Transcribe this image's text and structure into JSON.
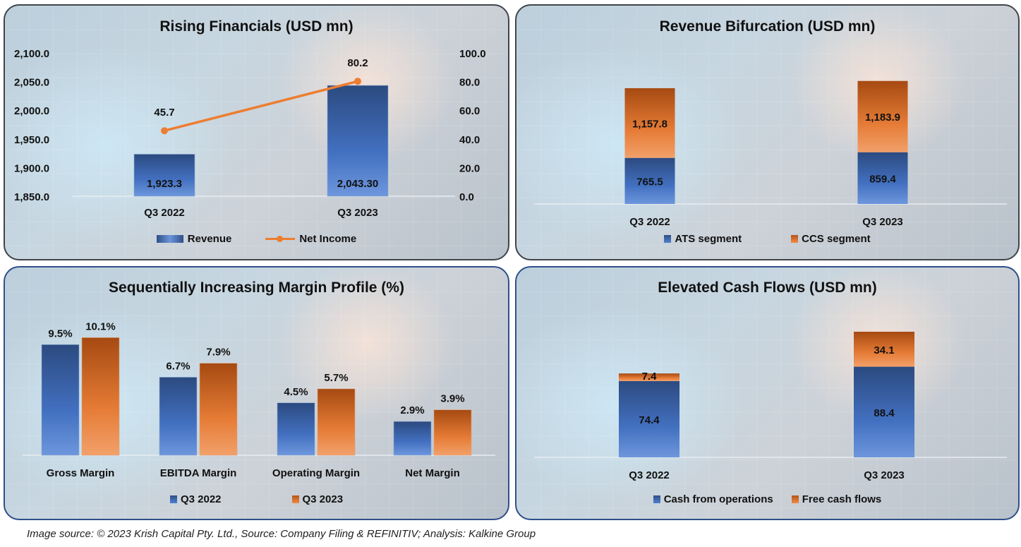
{
  "colors": {
    "blue": "#4472c4",
    "blue_dark": "#2f4f86",
    "orange": "#ed7d31",
    "orange_dark": "#b5531a",
    "line": "#ed7d31"
  },
  "chart_data": [
    {
      "type": "bar",
      "combo": "bar+line",
      "title": "Rising Financials (USD mn)",
      "categories": [
        "Q3 2022",
        "Q3 2023"
      ],
      "series": [
        {
          "name": "Revenue",
          "type": "bar",
          "axis": "left",
          "values": [
            1923.3,
            2043.3
          ],
          "labels": [
            "1,923.3",
            "2,043.30"
          ]
        },
        {
          "name": "Net Income",
          "type": "line",
          "axis": "right",
          "values": [
            45.7,
            80.2
          ],
          "labels": [
            "45.7",
            "80.2"
          ]
        }
      ],
      "y_left": {
        "min": 1850,
        "max": 2100,
        "ticks": [
          "2,100.0",
          "2,050.0",
          "2,000.0",
          "1,950.0",
          "1,900.0",
          "1,850.0"
        ]
      },
      "y_right": {
        "min": 0,
        "max": 100,
        "ticks": [
          "100.0",
          "80.0",
          "60.0",
          "40.0",
          "20.0",
          "0.0"
        ]
      },
      "legend": [
        "Revenue",
        "Net Income"
      ],
      "legend_position": "bottom",
      "grid": false
    },
    {
      "type": "bar",
      "stacked": true,
      "title": "Revenue Bifurcation (USD mn)",
      "categories": [
        "Q3 2022",
        "Q3 2023"
      ],
      "series": [
        {
          "name": "ATS segment",
          "values": [
            765.5,
            859.4
          ],
          "labels": [
            "765.5",
            "859.4"
          ]
        },
        {
          "name": "CCS segment",
          "values": [
            1157.8,
            1183.9
          ],
          "labels": [
            "1,157.8",
            "1,183.9"
          ]
        }
      ],
      "legend": [
        "ATS segment",
        "CCS segment"
      ],
      "legend_position": "bottom",
      "grid": false
    },
    {
      "type": "bar",
      "title": "Sequentially Increasing Margin Profile (%)",
      "categories": [
        "Gross Margin",
        "EBITDA Margin",
        "Operating Margin",
        "Net Margin"
      ],
      "series": [
        {
          "name": "Q3 2022",
          "values": [
            9.5,
            6.7,
            4.5,
            2.9
          ],
          "labels": [
            "9.5%",
            "6.7%",
            "4.5%",
            "2.9%"
          ]
        },
        {
          "name": "Q3 2023",
          "values": [
            10.1,
            7.9,
            5.7,
            3.9
          ],
          "labels": [
            "10.1%",
            "7.9%",
            "5.7%",
            "3.9%"
          ]
        }
      ],
      "legend": [
        "Q3 2022",
        "Q3 2023"
      ],
      "legend_position": "bottom",
      "grid": false
    },
    {
      "type": "bar",
      "stacked": true,
      "title": "Elevated Cash Flows (USD mn)",
      "categories": [
        "Q3 2022",
        "Q3 2023"
      ],
      "series": [
        {
          "name": "Cash from operations",
          "values": [
            74.4,
            88.4
          ],
          "labels": [
            "74.4",
            "88.4"
          ]
        },
        {
          "name": "Free cash flows",
          "values": [
            7.4,
            34.1
          ],
          "labels": [
            "7.4",
            "34.1"
          ]
        }
      ],
      "legend": [
        "Cash from operations",
        "Free cash flows"
      ],
      "legend_position": "bottom",
      "grid": false
    }
  ],
  "footer": "Image source: © 2023 Krish Capital Pty. Ltd., Source: Company Filing & REFINITIV; Analysis: Kalkine Group"
}
